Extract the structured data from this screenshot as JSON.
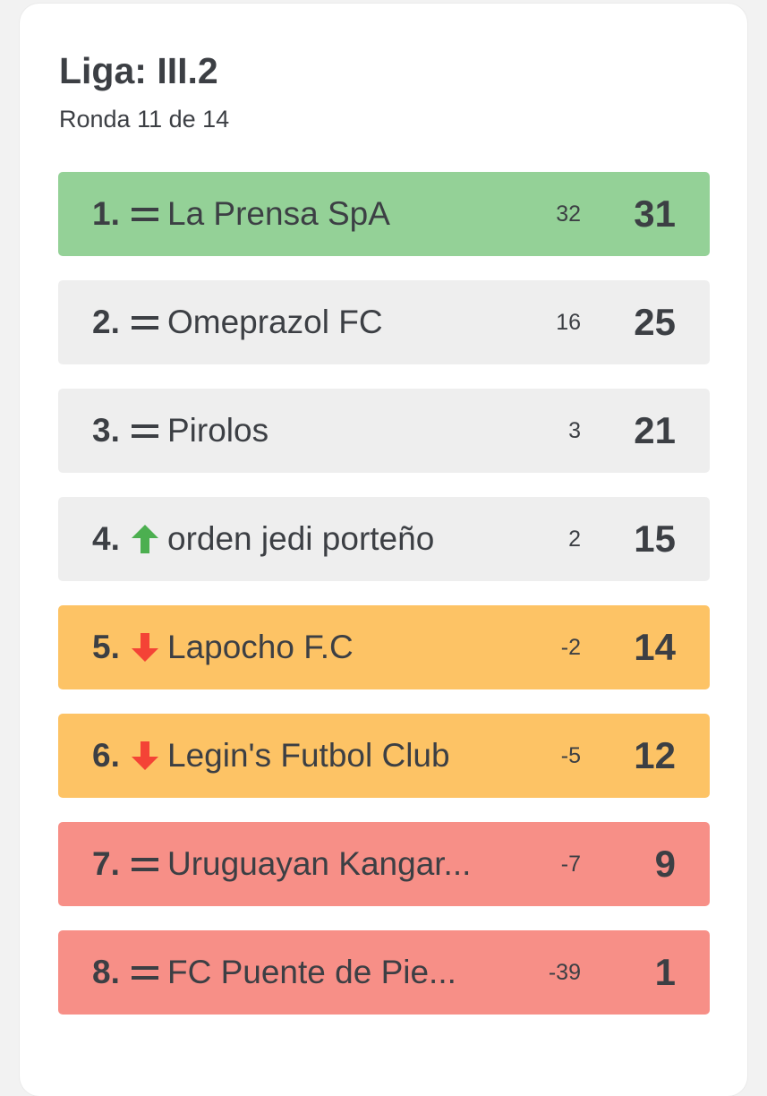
{
  "league": {
    "title": "Liga: III.2",
    "round": "Ronda 11 de 14"
  },
  "colors": {
    "green": "#94d197",
    "grey": "#eeeeee",
    "orange": "#fdc365",
    "red": "#f78f87",
    "trend_up": "#4caf50",
    "trend_down": "#f44336",
    "trend_same": "#3c3f44"
  },
  "standings": [
    {
      "position": "1.",
      "trend": "same",
      "trend_icon": "equals-icon",
      "team": "La Prensa SpA",
      "diff": "32",
      "points": "31",
      "zone": "green"
    },
    {
      "position": "2.",
      "trend": "same",
      "trend_icon": "equals-icon",
      "team": "Omeprazol FC",
      "diff": "16",
      "points": "25",
      "zone": "grey"
    },
    {
      "position": "3.",
      "trend": "same",
      "trend_icon": "equals-icon",
      "team": "Pirolos",
      "diff": "3",
      "points": "21",
      "zone": "grey"
    },
    {
      "position": "4.",
      "trend": "up",
      "trend_icon": "arrow-up-icon",
      "team": "orden jedi porteño",
      "diff": "2",
      "points": "15",
      "zone": "grey"
    },
    {
      "position": "5.",
      "trend": "down",
      "trend_icon": "arrow-down-icon",
      "team": "Lapocho F.C",
      "diff": "-2",
      "points": "14",
      "zone": "orange"
    },
    {
      "position": "6.",
      "trend": "down",
      "trend_icon": "arrow-down-icon",
      "team": "Legin's Futbol Club",
      "diff": "-5",
      "points": "12",
      "zone": "orange"
    },
    {
      "position": "7.",
      "trend": "same",
      "trend_icon": "equals-icon",
      "team": "Uruguayan Kangar...",
      "diff": "-7",
      "points": "9",
      "zone": "red"
    },
    {
      "position": "8.",
      "trend": "same",
      "trend_icon": "equals-icon",
      "team": "FC Puente de Pie...",
      "diff": "-39",
      "points": "1",
      "zone": "red"
    }
  ]
}
